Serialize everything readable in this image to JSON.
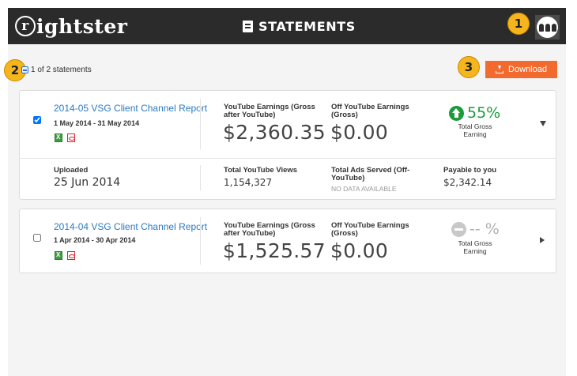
{
  "header": {
    "logo_text": "ightster",
    "logo_initial": "r",
    "title": "STATEMENTS"
  },
  "annotations": [
    "1",
    "2",
    "3"
  ],
  "toolbar": {
    "statement_count": "1 of 2 statements",
    "download_label": "Download"
  },
  "statements": [
    {
      "title": "2014-05 VSG Client Channel Report",
      "dates": "1 May 2014 - 31 May 2014",
      "checked": true,
      "yt_earnings_label": "YouTube Earnings (Gross after YouTube)",
      "yt_earnings": "$2,360.35",
      "off_yt_label": "Off YouTube Earnings (Gross)",
      "off_yt": "$0.00",
      "pct": "55%",
      "pct_direction": "up",
      "pct_label": "Total Gross Earning",
      "expanded": true,
      "details": {
        "uploaded_label": "Uploaded",
        "uploaded": "25 Jun 2014",
        "views_label": "Total YouTube Views",
        "views": "1,154,327",
        "ads_label": "Total Ads Served (Off-YouTube)",
        "ads": "NO DATA AVAILABLE",
        "payable_label": "Payable to you",
        "payable": "$2,342.14"
      }
    },
    {
      "title": "2014-04 VSG Client Channel Report",
      "dates": "1 Apr 2014 - 30 Apr 2014",
      "checked": false,
      "yt_earnings_label": "YouTube Earnings (Gross after YouTube)",
      "yt_earnings": "$1,525.57",
      "off_yt_label": "Off YouTube Earnings (Gross)",
      "off_yt": "$0.00",
      "pct": "-- %",
      "pct_direction": "none",
      "pct_label": "Total Gross Earning",
      "expanded": false
    }
  ],
  "colors": {
    "header_bg": "#2b2b2b",
    "accent_orange": "#f26a2e",
    "link_blue": "#2a7ac2",
    "positive_green": "#1c9b3b",
    "badge_yellow": "#f5b51c"
  }
}
